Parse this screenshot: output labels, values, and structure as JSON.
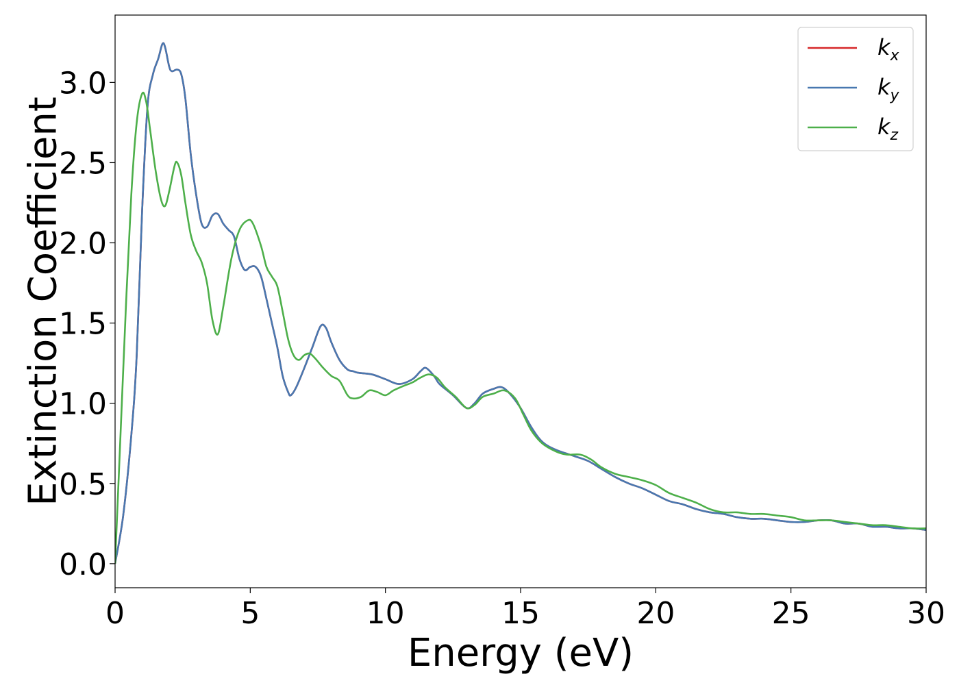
{
  "chart_data": {
    "type": "line",
    "title": "",
    "xlabel": "Energy (eV)",
    "ylabel": "Extinction Coefficient",
    "xlim": [
      0,
      30
    ],
    "ylim": [
      -0.15,
      3.42
    ],
    "xticks": [
      0,
      5,
      10,
      15,
      20,
      25,
      30
    ],
    "xtick_labels": [
      "0",
      "5",
      "10",
      "15",
      "20",
      "25",
      "30"
    ],
    "yticks": [
      0.0,
      0.5,
      1.0,
      1.5,
      2.0,
      2.5,
      3.0
    ],
    "ytick_labels": [
      "0.0",
      "0.5",
      "1.0",
      "1.5",
      "2.0",
      "2.5",
      "3.0"
    ],
    "grid": false,
    "legend_position": "top-right",
    "series": [
      {
        "name": "k_x",
        "legend_base": "k",
        "legend_sub": "x",
        "color": "#d62728",
        "points": [
          [
            0,
            0
          ],
          [
            0.3,
            0.3
          ],
          [
            0.6,
            0.8
          ],
          [
            0.8,
            1.3
          ],
          [
            1.0,
            2.2
          ],
          [
            1.2,
            2.85
          ],
          [
            1.4,
            3.05
          ],
          [
            1.6,
            3.15
          ],
          [
            1.75,
            3.24
          ],
          [
            1.85,
            3.22
          ],
          [
            2.0,
            3.1
          ],
          [
            2.1,
            3.07
          ],
          [
            2.3,
            3.08
          ],
          [
            2.45,
            3.05
          ],
          [
            2.6,
            2.9
          ],
          [
            2.8,
            2.55
          ],
          [
            3.0,
            2.3
          ],
          [
            3.2,
            2.12
          ],
          [
            3.4,
            2.1
          ],
          [
            3.6,
            2.17
          ],
          [
            3.8,
            2.18
          ],
          [
            4.0,
            2.12
          ],
          [
            4.2,
            2.08
          ],
          [
            4.4,
            2.04
          ],
          [
            4.6,
            1.9
          ],
          [
            4.8,
            1.83
          ],
          [
            5.0,
            1.85
          ],
          [
            5.2,
            1.85
          ],
          [
            5.4,
            1.79
          ],
          [
            5.6,
            1.65
          ],
          [
            5.8,
            1.5
          ],
          [
            6.0,
            1.35
          ],
          [
            6.2,
            1.17
          ],
          [
            6.4,
            1.07
          ],
          [
            6.5,
            1.05
          ],
          [
            6.7,
            1.1
          ],
          [
            7.0,
            1.22
          ],
          [
            7.3,
            1.35
          ],
          [
            7.6,
            1.48
          ],
          [
            7.8,
            1.47
          ],
          [
            8.0,
            1.38
          ],
          [
            8.3,
            1.27
          ],
          [
            8.6,
            1.21
          ],
          [
            8.8,
            1.2
          ],
          [
            9.0,
            1.19
          ],
          [
            9.5,
            1.18
          ],
          [
            10.0,
            1.15
          ],
          [
            10.5,
            1.12
          ],
          [
            11.0,
            1.15
          ],
          [
            11.3,
            1.2
          ],
          [
            11.5,
            1.22
          ],
          [
            11.8,
            1.17
          ],
          [
            12.0,
            1.12
          ],
          [
            12.5,
            1.05
          ],
          [
            13.0,
            0.97
          ],
          [
            13.3,
            1.0
          ],
          [
            13.6,
            1.06
          ],
          [
            14.0,
            1.09
          ],
          [
            14.3,
            1.1
          ],
          [
            14.6,
            1.06
          ],
          [
            15.0,
            0.97
          ],
          [
            15.4,
            0.85
          ],
          [
            15.8,
            0.76
          ],
          [
            16.3,
            0.71
          ],
          [
            17.0,
            0.67
          ],
          [
            17.5,
            0.64
          ],
          [
            18.0,
            0.59
          ],
          [
            18.5,
            0.54
          ],
          [
            19.0,
            0.5
          ],
          [
            19.5,
            0.47
          ],
          [
            20.0,
            0.43
          ],
          [
            20.5,
            0.39
          ],
          [
            21.0,
            0.37
          ],
          [
            21.5,
            0.34
          ],
          [
            22.0,
            0.32
          ],
          [
            22.5,
            0.31
          ],
          [
            23.0,
            0.29
          ],
          [
            23.5,
            0.28
          ],
          [
            24.0,
            0.28
          ],
          [
            24.5,
            0.27
          ],
          [
            25.0,
            0.26
          ],
          [
            25.5,
            0.26
          ],
          [
            26.0,
            0.27
          ],
          [
            26.5,
            0.27
          ],
          [
            27.0,
            0.25
          ],
          [
            27.5,
            0.25
          ],
          [
            28.0,
            0.23
          ],
          [
            28.5,
            0.23
          ],
          [
            29.0,
            0.22
          ],
          [
            29.5,
            0.22
          ],
          [
            30.0,
            0.21
          ]
        ]
      },
      {
        "name": "k_y",
        "legend_base": "k",
        "legend_sub": "y",
        "color": "#4878b0",
        "points": [
          [
            0,
            0
          ],
          [
            0.3,
            0.3
          ],
          [
            0.6,
            0.8
          ],
          [
            0.8,
            1.3
          ],
          [
            1.0,
            2.2
          ],
          [
            1.2,
            2.85
          ],
          [
            1.4,
            3.05
          ],
          [
            1.6,
            3.15
          ],
          [
            1.75,
            3.24
          ],
          [
            1.85,
            3.22
          ],
          [
            2.0,
            3.1
          ],
          [
            2.1,
            3.07
          ],
          [
            2.3,
            3.08
          ],
          [
            2.45,
            3.05
          ],
          [
            2.6,
            2.9
          ],
          [
            2.8,
            2.55
          ],
          [
            3.0,
            2.3
          ],
          [
            3.2,
            2.12
          ],
          [
            3.4,
            2.1
          ],
          [
            3.6,
            2.17
          ],
          [
            3.8,
            2.18
          ],
          [
            4.0,
            2.12
          ],
          [
            4.2,
            2.08
          ],
          [
            4.4,
            2.04
          ],
          [
            4.6,
            1.9
          ],
          [
            4.8,
            1.83
          ],
          [
            5.0,
            1.85
          ],
          [
            5.2,
            1.85
          ],
          [
            5.4,
            1.79
          ],
          [
            5.6,
            1.65
          ],
          [
            5.8,
            1.5
          ],
          [
            6.0,
            1.35
          ],
          [
            6.2,
            1.17
          ],
          [
            6.4,
            1.07
          ],
          [
            6.5,
            1.05
          ],
          [
            6.7,
            1.1
          ],
          [
            7.0,
            1.22
          ],
          [
            7.3,
            1.35
          ],
          [
            7.6,
            1.48
          ],
          [
            7.8,
            1.47
          ],
          [
            8.0,
            1.38
          ],
          [
            8.3,
            1.27
          ],
          [
            8.6,
            1.21
          ],
          [
            8.8,
            1.2
          ],
          [
            9.0,
            1.19
          ],
          [
            9.5,
            1.18
          ],
          [
            10.0,
            1.15
          ],
          [
            10.5,
            1.12
          ],
          [
            11.0,
            1.15
          ],
          [
            11.3,
            1.2
          ],
          [
            11.5,
            1.22
          ],
          [
            11.8,
            1.17
          ],
          [
            12.0,
            1.12
          ],
          [
            12.5,
            1.05
          ],
          [
            13.0,
            0.97
          ],
          [
            13.3,
            1.0
          ],
          [
            13.6,
            1.06
          ],
          [
            14.0,
            1.09
          ],
          [
            14.3,
            1.1
          ],
          [
            14.6,
            1.06
          ],
          [
            15.0,
            0.97
          ],
          [
            15.4,
            0.85
          ],
          [
            15.8,
            0.76
          ],
          [
            16.3,
            0.71
          ],
          [
            17.0,
            0.67
          ],
          [
            17.5,
            0.64
          ],
          [
            18.0,
            0.59
          ],
          [
            18.5,
            0.54
          ],
          [
            19.0,
            0.5
          ],
          [
            19.5,
            0.47
          ],
          [
            20.0,
            0.43
          ],
          [
            20.5,
            0.39
          ],
          [
            21.0,
            0.37
          ],
          [
            21.5,
            0.34
          ],
          [
            22.0,
            0.32
          ],
          [
            22.5,
            0.31
          ],
          [
            23.0,
            0.29
          ],
          [
            23.5,
            0.28
          ],
          [
            24.0,
            0.28
          ],
          [
            24.5,
            0.27
          ],
          [
            25.0,
            0.26
          ],
          [
            25.5,
            0.26
          ],
          [
            26.0,
            0.27
          ],
          [
            26.5,
            0.27
          ],
          [
            27.0,
            0.25
          ],
          [
            27.5,
            0.25
          ],
          [
            28.0,
            0.23
          ],
          [
            28.5,
            0.23
          ],
          [
            29.0,
            0.22
          ],
          [
            29.5,
            0.22
          ],
          [
            30.0,
            0.21
          ]
        ]
      },
      {
        "name": "k_z",
        "legend_base": "k",
        "legend_sub": "z",
        "color": "#4daf4a",
        "points": [
          [
            0,
            0
          ],
          [
            0.2,
            0.8
          ],
          [
            0.4,
            1.6
          ],
          [
            0.6,
            2.3
          ],
          [
            0.8,
            2.75
          ],
          [
            1.0,
            2.93
          ],
          [
            1.15,
            2.88
          ],
          [
            1.3,
            2.7
          ],
          [
            1.5,
            2.45
          ],
          [
            1.7,
            2.27
          ],
          [
            1.85,
            2.23
          ],
          [
            2.0,
            2.32
          ],
          [
            2.2,
            2.48
          ],
          [
            2.3,
            2.5
          ],
          [
            2.45,
            2.42
          ],
          [
            2.6,
            2.25
          ],
          [
            2.8,
            2.05
          ],
          [
            3.0,
            1.95
          ],
          [
            3.2,
            1.88
          ],
          [
            3.4,
            1.75
          ],
          [
            3.6,
            1.52
          ],
          [
            3.8,
            1.43
          ],
          [
            4.0,
            1.6
          ],
          [
            4.3,
            1.9
          ],
          [
            4.6,
            2.08
          ],
          [
            4.9,
            2.14
          ],
          [
            5.1,
            2.12
          ],
          [
            5.4,
            1.98
          ],
          [
            5.6,
            1.85
          ],
          [
            5.8,
            1.79
          ],
          [
            6.0,
            1.73
          ],
          [
            6.2,
            1.57
          ],
          [
            6.4,
            1.4
          ],
          [
            6.6,
            1.3
          ],
          [
            6.8,
            1.27
          ],
          [
            7.0,
            1.3
          ],
          [
            7.2,
            1.31
          ],
          [
            7.4,
            1.28
          ],
          [
            7.7,
            1.22
          ],
          [
            8.0,
            1.17
          ],
          [
            8.3,
            1.14
          ],
          [
            8.6,
            1.05
          ],
          [
            8.8,
            1.03
          ],
          [
            9.1,
            1.04
          ],
          [
            9.4,
            1.08
          ],
          [
            9.7,
            1.07
          ],
          [
            10.0,
            1.05
          ],
          [
            10.3,
            1.08
          ],
          [
            10.7,
            1.11
          ],
          [
            11.0,
            1.13
          ],
          [
            11.3,
            1.16
          ],
          [
            11.6,
            1.18
          ],
          [
            11.9,
            1.16
          ],
          [
            12.2,
            1.1
          ],
          [
            12.6,
            1.04
          ],
          [
            13.0,
            0.97
          ],
          [
            13.3,
            0.99
          ],
          [
            13.6,
            1.04
          ],
          [
            14.0,
            1.06
          ],
          [
            14.4,
            1.08
          ],
          [
            14.8,
            1.03
          ],
          [
            15.1,
            0.93
          ],
          [
            15.4,
            0.83
          ],
          [
            15.8,
            0.75
          ],
          [
            16.3,
            0.7
          ],
          [
            16.7,
            0.68
          ],
          [
            17.2,
            0.68
          ],
          [
            17.6,
            0.65
          ],
          [
            18.0,
            0.6
          ],
          [
            18.5,
            0.56
          ],
          [
            19.0,
            0.54
          ],
          [
            19.5,
            0.52
          ],
          [
            20.0,
            0.49
          ],
          [
            20.5,
            0.44
          ],
          [
            21.0,
            0.41
          ],
          [
            21.5,
            0.38
          ],
          [
            22.0,
            0.34
          ],
          [
            22.5,
            0.32
          ],
          [
            23.0,
            0.32
          ],
          [
            23.5,
            0.31
          ],
          [
            24.0,
            0.31
          ],
          [
            24.5,
            0.3
          ],
          [
            25.0,
            0.29
          ],
          [
            25.5,
            0.27
          ],
          [
            26.0,
            0.27
          ],
          [
            26.5,
            0.27
          ],
          [
            27.0,
            0.26
          ],
          [
            27.5,
            0.25
          ],
          [
            28.0,
            0.24
          ],
          [
            28.5,
            0.24
          ],
          [
            29.0,
            0.23
          ],
          [
            29.5,
            0.22
          ],
          [
            30.0,
            0.22
          ]
        ]
      }
    ]
  }
}
